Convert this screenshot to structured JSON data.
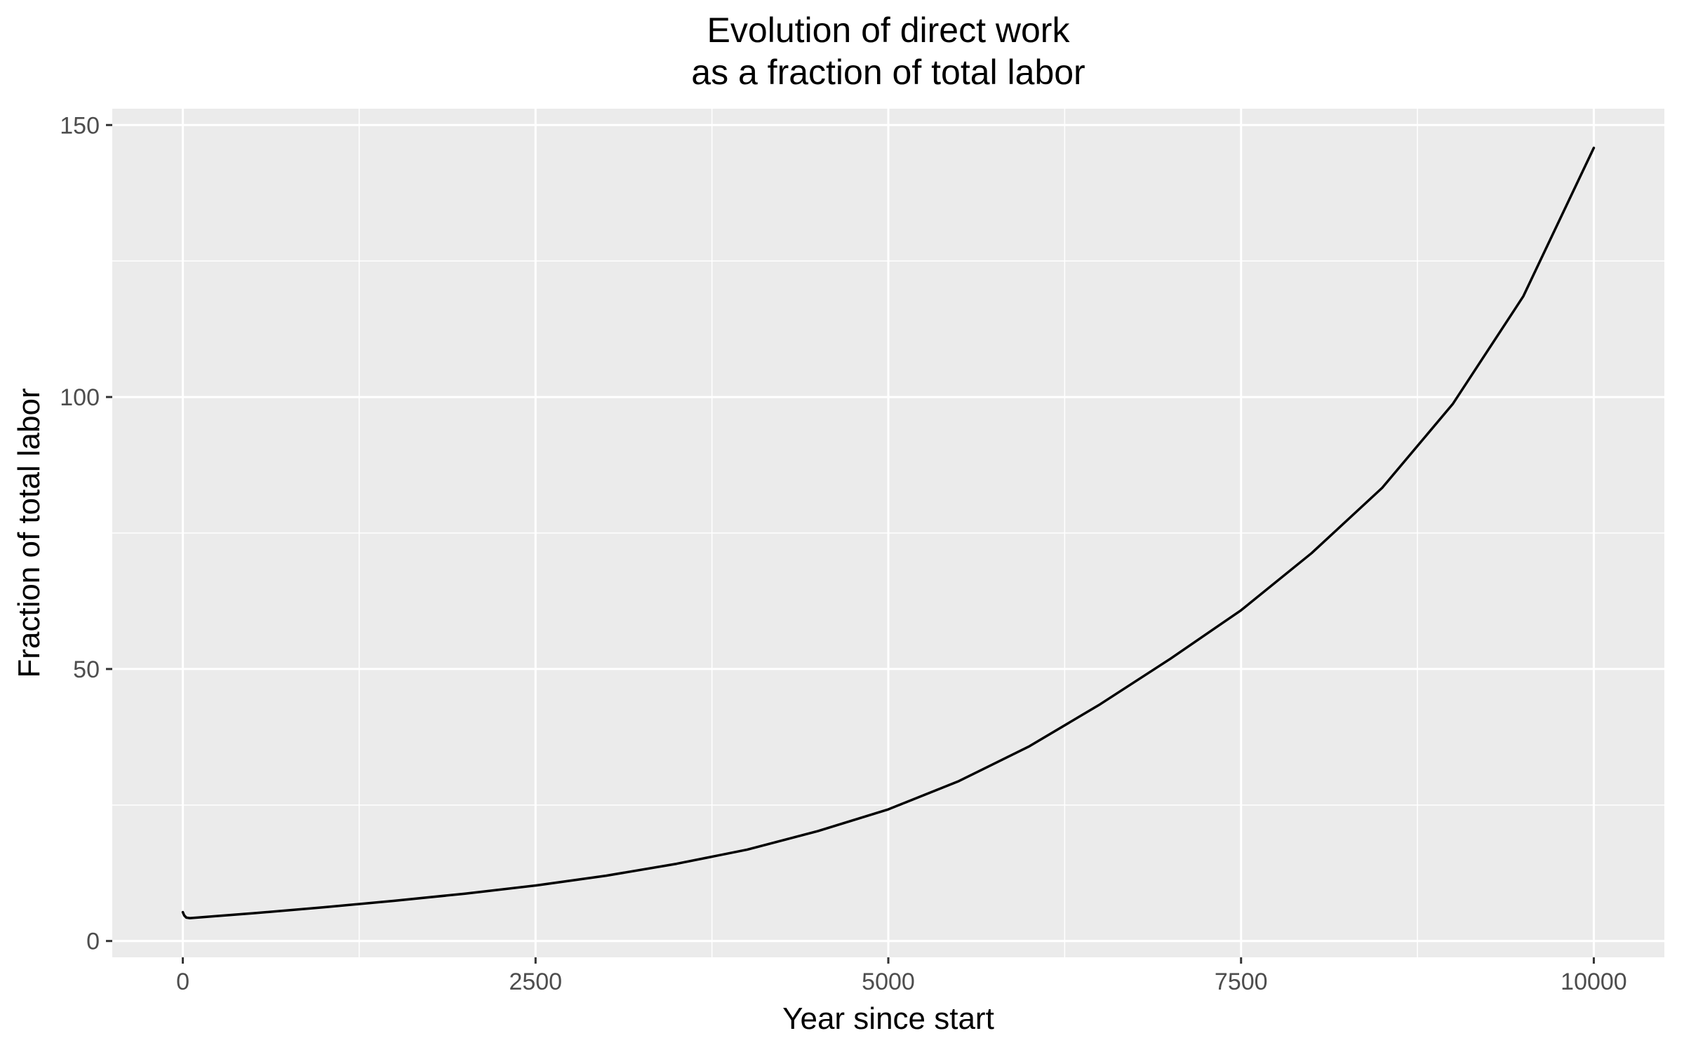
{
  "chart_data": {
    "type": "line",
    "title_lines": [
      "Evolution of direct work",
      "as a fraction of total labor"
    ],
    "xlabel": "Year since start",
    "ylabel": "Fraction of total labor",
    "xlim": [
      -500,
      10500
    ],
    "ylim": [
      -3,
      153
    ],
    "x_ticks": [
      0,
      2500,
      5000,
      7500,
      10000
    ],
    "x_tick_labels": [
      "0",
      "2500",
      "5000",
      "7500",
      "10000"
    ],
    "x_minor_ticks": [
      1250,
      3750,
      6250,
      8750
    ],
    "y_ticks": [
      0,
      50,
      100,
      150
    ],
    "y_tick_labels": [
      "0",
      "50",
      "100",
      "150"
    ],
    "y_minor_ticks": [
      25,
      75,
      125
    ],
    "grid": true,
    "legend": "none",
    "colors": {
      "panel_background": "#ebebeb",
      "grid": "#ffffff",
      "line": "#000000",
      "tick_label": "#4d4d4d",
      "axis_tick": "#333333"
    },
    "series": [
      {
        "x": [
          0,
          10,
          25,
          50,
          100,
          250,
          500,
          1000,
          1500,
          2000,
          2500,
          3000,
          3500,
          4000,
          4500,
          5000,
          5500,
          6000,
          6500,
          7000,
          7500,
          8000,
          8500,
          9000,
          9500,
          10000
        ],
        "values": [
          5.3,
          4.7,
          4.3,
          4.2,
          4.3,
          4.6,
          5.1,
          6.2,
          7.4,
          8.7,
          10.2,
          12.0,
          14.2,
          16.8,
          20.2,
          24.2,
          29.4,
          35.8,
          43.5,
          51.9,
          60.8,
          71.3,
          83.3,
          98.7,
          118.5,
          145.8
        ]
      }
    ]
  }
}
